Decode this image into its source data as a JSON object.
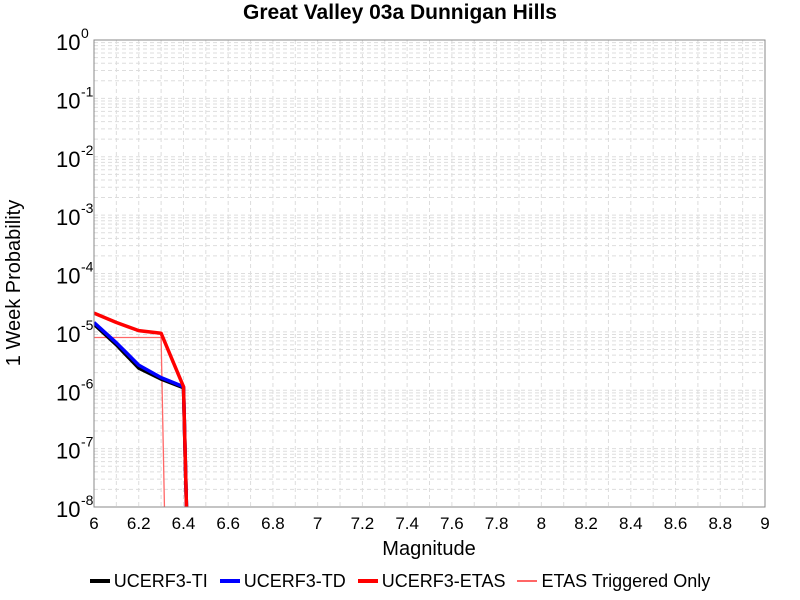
{
  "chart_data": {
    "type": "line",
    "title": "Great Valley 03a Dunnigan Hills",
    "xlabel": "Magnitude",
    "ylabel": "1 Week Probability",
    "xlim": [
      6,
      9
    ],
    "ylim": [
      1e-08,
      1
    ],
    "yscale": "log",
    "grid": true,
    "legend_position": "bottom",
    "xticks": [
      "6",
      "6.2",
      "6.4",
      "6.6",
      "6.8",
      "7",
      "7.2",
      "7.4",
      "7.6",
      "7.8",
      "8",
      "8.2",
      "8.4",
      "8.6",
      "8.8",
      "9"
    ],
    "yticks": [
      {
        "base": "10",
        "exp": "0"
      },
      {
        "base": "10",
        "exp": "-1"
      },
      {
        "base": "10",
        "exp": "-2"
      },
      {
        "base": "10",
        "exp": "-3"
      },
      {
        "base": "10",
        "exp": "-4"
      },
      {
        "base": "10",
        "exp": "-5"
      },
      {
        "base": "10",
        "exp": "-6"
      },
      {
        "base": "10",
        "exp": "-7"
      },
      {
        "base": "10",
        "exp": "-8"
      }
    ],
    "series": [
      {
        "name": "UCERF3-TI",
        "color": "#000000",
        "style": "thick",
        "x": [
          6.0,
          6.1,
          6.2,
          6.3,
          6.4,
          6.42
        ],
        "y": [
          1.35e-05,
          6e-06,
          2.4e-06,
          1.55e-06,
          1.1e-06,
          1e-09
        ]
      },
      {
        "name": "UCERF3-TD",
        "color": "#0000ff",
        "style": "thick",
        "x": [
          6.0,
          6.1,
          6.2,
          6.3,
          6.4,
          6.42
        ],
        "y": [
          1.45e-05,
          6.5e-06,
          2.7e-06,
          1.65e-06,
          1.15e-06,
          1e-09
        ]
      },
      {
        "name": "UCERF3-ETAS",
        "color": "#ff0000",
        "style": "thick",
        "x": [
          6.0,
          6.1,
          6.2,
          6.3,
          6.4,
          6.42
        ],
        "y": [
          2.1e-05,
          1.45e-05,
          1.05e-05,
          9.5e-06,
          1.15e-06,
          1e-09
        ]
      },
      {
        "name": "ETAS Triggered Only",
        "color": "#ff6666",
        "style": "thin",
        "x": [
          6.0,
          6.1,
          6.2,
          6.3,
          6.32
        ],
        "y": [
          8e-06,
          8e-06,
          8e-06,
          8e-06,
          1e-09
        ]
      }
    ]
  }
}
